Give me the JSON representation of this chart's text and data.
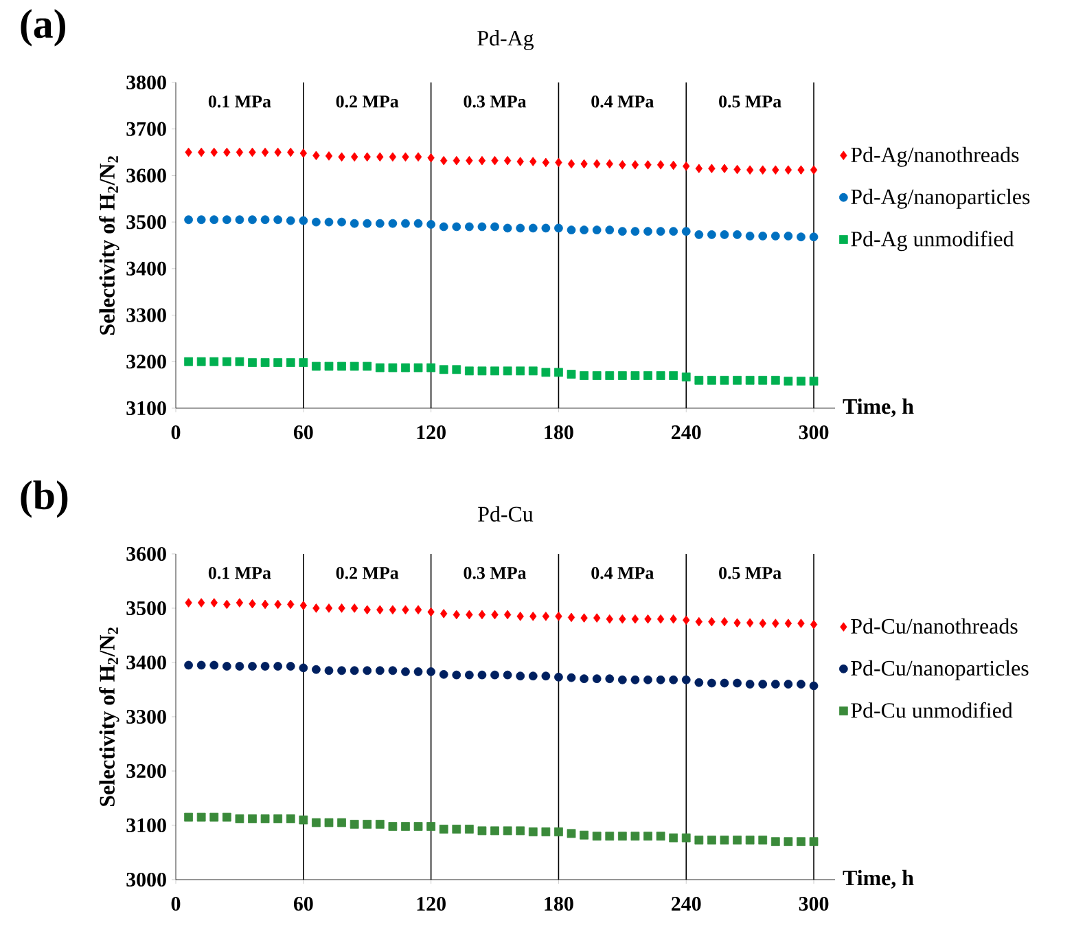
{
  "chart_data": [
    {
      "type": "scatter",
      "title": "Pd-Ag",
      "xlabel": "Time, h",
      "ylabel": "Selectivity of H$_{2}$/N$_{2}$",
      "legend": "right",
      "xlim": [
        0,
        310
      ],
      "xticks": [
        0,
        60,
        120,
        180,
        240,
        300
      ],
      "ylim": [
        3100,
        3800
      ],
      "yticks": [
        3100,
        3200,
        3300,
        3400,
        3500,
        3600,
        3700,
        3800
      ],
      "x": [
        6,
        12,
        18,
        24,
        30,
        36,
        42,
        48,
        54,
        60,
        66,
        72,
        78,
        84,
        90,
        96,
        102,
        108,
        114,
        120,
        126,
        132,
        138,
        144,
        150,
        156,
        162,
        168,
        174,
        180,
        186,
        192,
        198,
        204,
        210,
        216,
        222,
        228,
        234,
        240,
        246,
        252,
        258,
        264,
        270,
        276,
        282,
        288,
        294,
        300
      ],
      "ref_lines": [
        {
          "axis": "x",
          "value": 60
        },
        {
          "axis": "x",
          "value": 120
        },
        {
          "axis": "x",
          "value": 180
        },
        {
          "axis": "x",
          "value": 240
        },
        {
          "axis": "x",
          "value": 300
        }
      ],
      "annotations": [
        "(a)",
        "0.1 MPa",
        "0.2 MPa",
        "0.3 MPa",
        "0.4 MPa",
        "0.5 MPa"
      ],
      "series": [
        {
          "name": "Pd-Ag/nanothreads",
          "color": "#ff0000",
          "marker": "diamond",
          "values": [
            3650,
            3650,
            3650,
            3650,
            3650,
            3650,
            3650,
            3650,
            3650,
            3648,
            3643,
            3642,
            3640,
            3640,
            3640,
            3640,
            3640,
            3640,
            3640,
            3638,
            3632,
            3632,
            3632,
            3632,
            3632,
            3632,
            3630,
            3630,
            3628,
            3628,
            3625,
            3625,
            3625,
            3625,
            3623,
            3623,
            3623,
            3623,
            3622,
            3620,
            3615,
            3615,
            3615,
            3613,
            3612,
            3612,
            3612,
            3612,
            3612,
            3612
          ]
        },
        {
          "name": "Pd-Ag/nanoparticles",
          "color": "#0070c0",
          "marker": "circle",
          "values": [
            3505,
            3505,
            3505,
            3505,
            3505,
            3505,
            3505,
            3505,
            3503,
            3503,
            3500,
            3500,
            3500,
            3497,
            3497,
            3497,
            3497,
            3497,
            3497,
            3495,
            3490,
            3490,
            3490,
            3490,
            3490,
            3487,
            3487,
            3487,
            3487,
            3487,
            3483,
            3483,
            3483,
            3483,
            3480,
            3480,
            3480,
            3480,
            3480,
            3480,
            3473,
            3473,
            3473,
            3473,
            3470,
            3470,
            3470,
            3470,
            3468,
            3468
          ]
        },
        {
          "name": "Pd-Ag unmodified",
          "color": "#00b050",
          "marker": "square",
          "values": [
            3200,
            3200,
            3200,
            3200,
            3200,
            3198,
            3198,
            3198,
            3198,
            3198,
            3190,
            3190,
            3190,
            3190,
            3190,
            3187,
            3187,
            3187,
            3187,
            3187,
            3183,
            3183,
            3180,
            3180,
            3180,
            3180,
            3180,
            3180,
            3177,
            3177,
            3173,
            3170,
            3170,
            3170,
            3170,
            3170,
            3170,
            3170,
            3170,
            3167,
            3160,
            3160,
            3160,
            3160,
            3160,
            3160,
            3160,
            3158,
            3158,
            3158
          ]
        }
      ]
    },
    {
      "type": "scatter",
      "title": "Pd-Cu",
      "xlabel": "Time, h",
      "ylabel": "Selectivity of H$_{2}$/N$_{2}$",
      "legend": "right",
      "xlim": [
        0,
        310
      ],
      "xticks": [
        0,
        60,
        120,
        180,
        240,
        300
      ],
      "ylim": [
        3000,
        3600
      ],
      "yticks": [
        3000,
        3100,
        3200,
        3300,
        3400,
        3500,
        3600
      ],
      "x": [
        6,
        12,
        18,
        24,
        30,
        36,
        42,
        48,
        54,
        60,
        66,
        72,
        78,
        84,
        90,
        96,
        102,
        108,
        114,
        120,
        126,
        132,
        138,
        144,
        150,
        156,
        162,
        168,
        174,
        180,
        186,
        192,
        198,
        204,
        210,
        216,
        222,
        228,
        234,
        240,
        246,
        252,
        258,
        264,
        270,
        276,
        282,
        288,
        294,
        300
      ],
      "ref_lines": [
        {
          "axis": "x",
          "value": 60
        },
        {
          "axis": "x",
          "value": 120
        },
        {
          "axis": "x",
          "value": 180
        },
        {
          "axis": "x",
          "value": 240
        },
        {
          "axis": "x",
          "value": 300
        }
      ],
      "annotations": [
        "(b)",
        "0.1 MPa",
        "0.2 MPa",
        "0.3 MPa",
        "0.4 MPa",
        "0.5 MPa"
      ],
      "series": [
        {
          "name": "Pd-Cu/nanothreads",
          "color": "#ff0000",
          "marker": "diamond",
          "values": [
            3510,
            3510,
            3510,
            3507,
            3510,
            3508,
            3507,
            3507,
            3507,
            3505,
            3500,
            3500,
            3500,
            3500,
            3497,
            3497,
            3497,
            3497,
            3497,
            3493,
            3490,
            3488,
            3488,
            3488,
            3488,
            3488,
            3485,
            3485,
            3485,
            3485,
            3483,
            3482,
            3482,
            3480,
            3480,
            3480,
            3480,
            3480,
            3480,
            3478,
            3475,
            3475,
            3475,
            3473,
            3473,
            3472,
            3472,
            3472,
            3472,
            3470
          ]
        },
        {
          "name": "Pd-Cu/nanoparticles",
          "color": "#002060",
          "marker": "circle",
          "values": [
            3395,
            3395,
            3395,
            3393,
            3393,
            3393,
            3393,
            3393,
            3393,
            3390,
            3387,
            3385,
            3385,
            3385,
            3385,
            3385,
            3385,
            3383,
            3383,
            3383,
            3378,
            3377,
            3377,
            3377,
            3377,
            3377,
            3375,
            3375,
            3375,
            3373,
            3372,
            3370,
            3370,
            3370,
            3368,
            3368,
            3368,
            3368,
            3368,
            3368,
            3363,
            3362,
            3362,
            3362,
            3360,
            3360,
            3360,
            3360,
            3360,
            3357
          ]
        },
        {
          "name": "Pd-Cu unmodified",
          "color": "#3a8a3a",
          "marker": "square",
          "values": [
            3115,
            3115,
            3115,
            3115,
            3112,
            3112,
            3112,
            3112,
            3112,
            3110,
            3105,
            3105,
            3105,
            3102,
            3102,
            3102,
            3098,
            3098,
            3098,
            3098,
            3093,
            3093,
            3093,
            3090,
            3090,
            3090,
            3090,
            3088,
            3088,
            3088,
            3085,
            3082,
            3080,
            3080,
            3080,
            3080,
            3080,
            3080,
            3077,
            3077,
            3073,
            3073,
            3073,
            3073,
            3073,
            3073,
            3070,
            3070,
            3070,
            3070
          ]
        }
      ]
    }
  ]
}
